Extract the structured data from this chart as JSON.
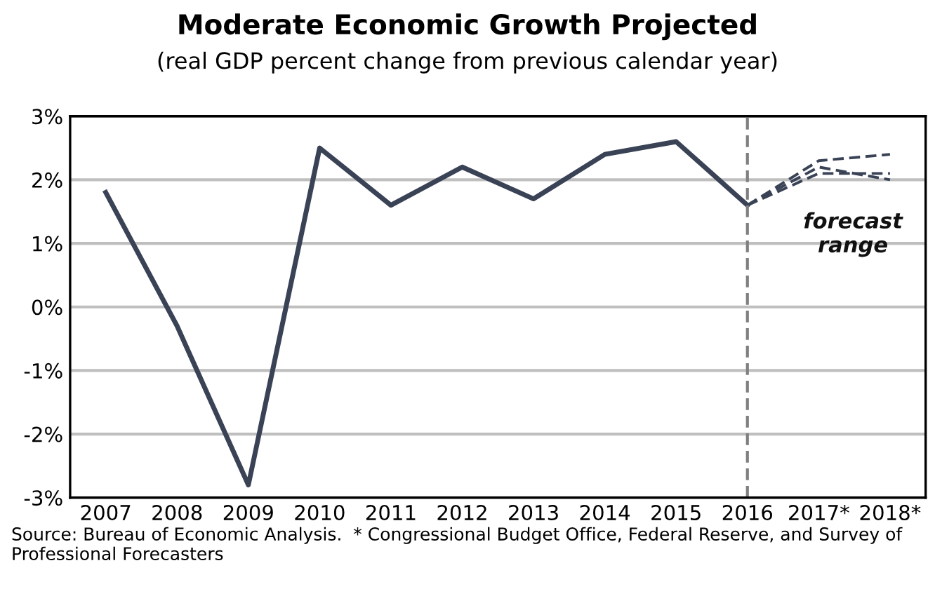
{
  "chart_data": {
    "type": "line",
    "title": "Moderate Economic Growth Projected",
    "subtitle": "(real GDP percent change from previous calendar year)",
    "categories": [
      "2007",
      "2008",
      "2009",
      "2010",
      "2011",
      "2012",
      "2013",
      "2014",
      "2015",
      "2016",
      "2017*",
      "2018*"
    ],
    "series": [
      {
        "color": "#3a4356",
        "line_style": "solid",
        "values": [
          1.8,
          -0.3,
          -2.8,
          2.5,
          1.6,
          2.2,
          1.7,
          2.4,
          2.6,
          1.6,
          null,
          null
        ]
      },
      {
        "color": "#3a4356",
        "line_style": "dashed",
        "values": [
          null,
          null,
          null,
          null,
          null,
          null,
          null,
          null,
          null,
          1.6,
          2.3,
          2.4
        ]
      },
      {
        "color": "#3a4356",
        "line_style": "dashed",
        "values": [
          null,
          null,
          null,
          null,
          null,
          null,
          null,
          null,
          null,
          1.6,
          2.1,
          2.1
        ]
      },
      {
        "color": "#3a4356",
        "line_style": "dashed",
        "values": [
          null,
          null,
          null,
          null,
          null,
          null,
          null,
          null,
          null,
          1.6,
          2.2,
          2.0
        ]
      }
    ],
    "ylim": [
      -3,
      3
    ],
    "yticks": [
      {
        "value": -3,
        "label": "-3%"
      },
      {
        "value": -2,
        "label": "-2%"
      },
      {
        "value": -1,
        "label": "-1%"
      },
      {
        "value": 0,
        "label": "0%"
      },
      {
        "value": 1,
        "label": "1%"
      },
      {
        "value": 2,
        "label": "2%"
      },
      {
        "value": 3,
        "label": "3%"
      }
    ],
    "grid": "y",
    "ref_lines": [
      {
        "axis": "x",
        "value": "2016",
        "color": "#808080",
        "line_style": "dashed"
      }
    ],
    "annotations": [
      "forecast\nrange",
      "Source: Bureau of Economic Analysis.  * Congressional Budget Office, Federal Reserve, and Survey of Professional Forecasters"
    ]
  }
}
